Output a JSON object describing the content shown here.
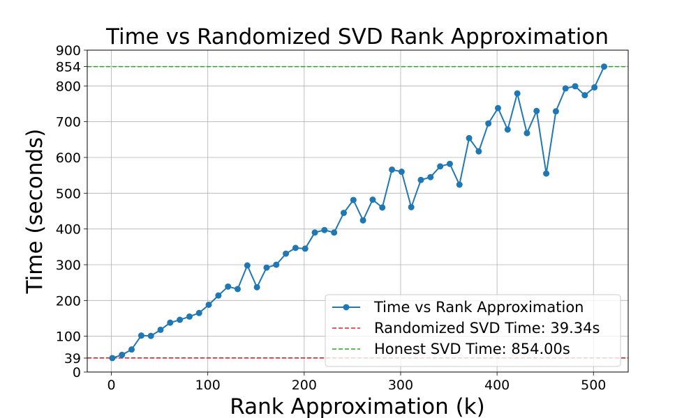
{
  "chart_data": {
    "type": "line",
    "title": "Time vs Randomized SVD Rank Approximation",
    "xlabel": "Rank Approximation (k)",
    "ylabel": "Time (seconds)",
    "xlim": [
      -25,
      536
    ],
    "ylim": [
      0,
      900
    ],
    "xticks": [
      0,
      100,
      200,
      300,
      400,
      500
    ],
    "yticks": [
      0,
      39,
      100,
      200,
      300,
      400,
      500,
      600,
      700,
      800,
      854,
      900
    ],
    "grid": true,
    "legend_position": "lower-right",
    "series": [
      {
        "name": "Time vs Rank Approximation",
        "color": "#1f77b4",
        "marker": "circle",
        "x": [
          1,
          11,
          21,
          31,
          41,
          51,
          61,
          71,
          81,
          91,
          101,
          111,
          121,
          131,
          141,
          151,
          161,
          171,
          181,
          191,
          201,
          211,
          221,
          231,
          241,
          251,
          261,
          271,
          281,
          291,
          301,
          311,
          321,
          331,
          341,
          351,
          361,
          371,
          381,
          391,
          401,
          411,
          421,
          431,
          441,
          451,
          461,
          471,
          481,
          491,
          501,
          511
        ],
        "y": [
          39,
          48,
          63,
          102,
          101,
          118,
          138,
          146,
          155,
          165,
          188,
          214,
          239,
          232,
          298,
          237,
          292,
          300,
          331,
          347,
          345,
          390,
          397,
          390,
          445,
          481,
          424,
          482,
          460,
          566,
          560,
          461,
          537,
          545,
          575,
          582,
          524,
          654,
          617,
          695,
          738,
          678,
          779,
          668,
          730,
          555,
          729,
          793,
          799,
          774,
          796,
          854
        ]
      }
    ],
    "reference_lines": [
      {
        "name": "Randomized SVD Time: 39.34s",
        "value": 39.34,
        "color": "#d62728",
        "style": "dashed"
      },
      {
        "name": "Honest SVD Time: 854.00s",
        "value": 854.0,
        "color": "#2ca02c",
        "style": "dashed"
      }
    ]
  }
}
